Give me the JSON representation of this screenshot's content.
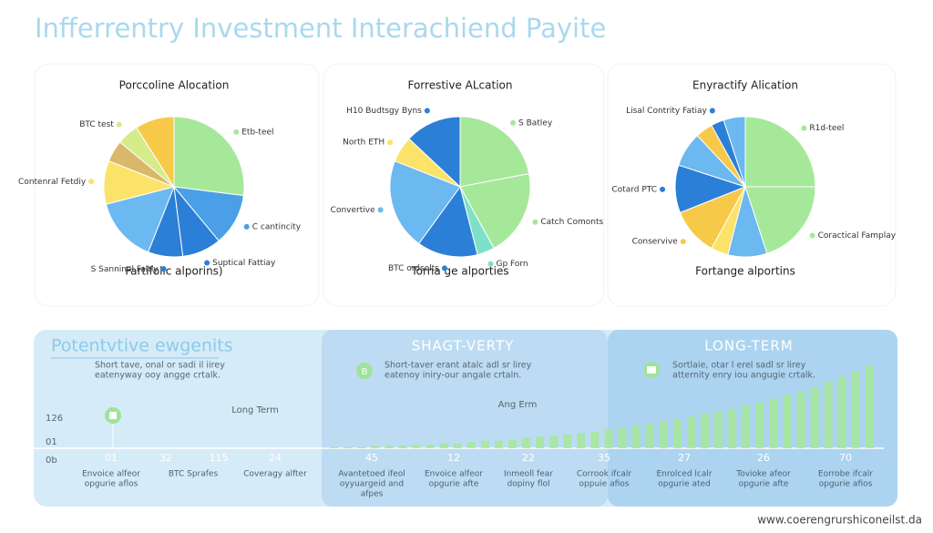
{
  "title": "Infferrentry Investment Interachiend Payite",
  "chart_data": [
    {
      "type": "pie",
      "title": "Porccoline Alocation",
      "footer": "Fartifolic alporins)",
      "categories": [
        "Etb-teel",
        "C cantincity",
        "Suptical Fattiay",
        "S Sanninal Faltiy",
        null,
        "Contenral Fetdiy",
        null,
        "BTC test",
        null
      ],
      "values": [
        27,
        12,
        9,
        8,
        15,
        10,
        5,
        5,
        9
      ],
      "colors": [
        "#a6e89a",
        "#4a9fe6",
        "#2c7fd6",
        "#2c7fd6",
        "#6cb8f0",
        "#fbe36a",
        "#d9b86a",
        "#d4ec8a",
        "#f7c948"
      ]
    },
    {
      "type": "pie",
      "title": "Forrestive ALcation",
      "footer": "Torna ge alporties",
      "categories": [
        "S Batley",
        "Catch Comonts",
        "Gp Forn",
        "BTC ordsolts",
        "Convertive",
        "North ETH",
        "H10 Budtsgy Byns"
      ],
      "values": [
        22,
        20,
        4,
        14,
        21,
        6,
        13
      ],
      "colors": [
        "#a6e89a",
        "#a6e89a",
        "#7fe0c8",
        "#2c7fd6",
        "#6cb8f0",
        "#fbe36a",
        "#2c7fd6"
      ]
    },
    {
      "type": "pie",
      "title": "Enyractify Alication",
      "footer": "Fortange alportins",
      "categories": [
        "R1d-teel",
        "Coractical Famplay",
        null,
        null,
        "Conservive",
        "Cotard PTC",
        null,
        null,
        "Lisal Contrity Fatiay",
        null
      ],
      "values": [
        25,
        20,
        9,
        4,
        11,
        11,
        8,
        4,
        3,
        5
      ],
      "colors": [
        "#a6e89a",
        "#a6e89a",
        "#6cb8f0",
        "#fbe36a",
        "#f7c948",
        "#2c7fd6",
        "#6cb8f0",
        "#f7c948",
        "#2c7fd6",
        "#6cb8f0"
      ]
    }
  ],
  "timeline": {
    "panels": [
      {
        "title": "Potentvtive ewgenits",
        "description": [
          "Short tave, onal or sadi il iirey",
          "eatenyway ooy angge crtalk."
        ]
      },
      {
        "title": "SHAGT-VERTY",
        "badge": "B",
        "description": [
          "Short-taver erant atalc adl sr lirey",
          "eatenoy iniry-our angale crtaln."
        ]
      },
      {
        "title": "LONG-TERM",
        "description": [
          "Sortlaie, otar l erel sadl sr lirey",
          "atternity enry iou angugie crtalk."
        ]
      }
    ],
    "markers": [
      "Long Term",
      "Ang Erm"
    ],
    "y_labels": [
      "126",
      "01",
      "0b"
    ],
    "axis_labels": [
      "01",
      "32",
      "115",
      "24",
      "45",
      "12",
      "22",
      "35",
      "27",
      "26",
      "70"
    ],
    "notes": [
      [
        "Envoice alfeor",
        "opgurie aflos"
      ],
      [
        "BTC Sprafes"
      ],
      [
        "Coveragy alfter"
      ],
      [
        "Avantetoed ifeol",
        "oyyuargeid and",
        "afpes"
      ],
      [
        "Envoice alfeor",
        "opgurie afte"
      ],
      [
        "Inmeoll fear",
        "dopiny flol"
      ],
      [
        "Corrook ifcalr",
        "oppuie afios"
      ],
      [
        "Enrolced lcalr",
        "opgurie ated"
      ],
      [
        "Tovioke afeor",
        "opgurie afte"
      ],
      [
        "Eorrobe ifcalr",
        "opgurie afios"
      ]
    ],
    "growth": {
      "color": "#a6e89a",
      "values": [
        1,
        1,
        1,
        2,
        2,
        2,
        3,
        3,
        4,
        4,
        5,
        6,
        6,
        7,
        8,
        9,
        10,
        11,
        12,
        13,
        15,
        16,
        18,
        19,
        21,
        23,
        25,
        27,
        29,
        31,
        34,
        36,
        39,
        42,
        45,
        48,
        52,
        56,
        60,
        65
      ]
    }
  },
  "footer_url": "www.coerengrurshiconeilst.da"
}
